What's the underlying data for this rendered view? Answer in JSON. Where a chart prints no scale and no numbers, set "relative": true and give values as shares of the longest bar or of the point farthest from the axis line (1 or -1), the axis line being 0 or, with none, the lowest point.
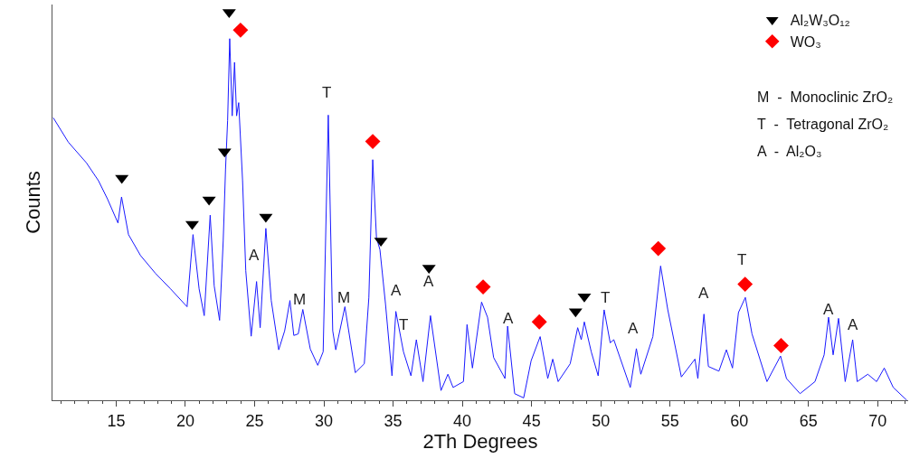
{
  "chart_data": {
    "type": "line",
    "relative": true,
    "xlabel": "2Th Degrees",
    "ylabel": "Counts",
    "xlim": [
      10.4,
      72.2
    ],
    "xticks": [
      {
        "value": 11,
        "label": null
      },
      {
        "value": 12,
        "label": null
      },
      {
        "value": 13,
        "label": null
      },
      {
        "value": 14,
        "label": null
      },
      15,
      {
        "value": 16,
        "label": null
      },
      {
        "value": 17,
        "label": null
      },
      {
        "value": 18,
        "label": null
      },
      {
        "value": 19,
        "label": null
      },
      20,
      {
        "value": 21,
        "label": null
      },
      {
        "value": 22,
        "label": null
      },
      {
        "value": 23,
        "label": null
      },
      {
        "value": 24,
        "label": null
      },
      25,
      {
        "value": 26,
        "label": null
      },
      {
        "value": 27,
        "label": null
      },
      {
        "value": 28,
        "label": null
      },
      {
        "value": 29,
        "label": null
      },
      30,
      {
        "value": 31,
        "label": null
      },
      {
        "value": 32,
        "label": null
      },
      {
        "value": 33,
        "label": null
      },
      {
        "value": 34,
        "label": null
      },
      35,
      {
        "value": 36,
        "label": null
      },
      {
        "value": 37,
        "label": null
      },
      {
        "value": 38,
        "label": null
      },
      {
        "value": 39,
        "label": null
      },
      40,
      {
        "value": 41,
        "label": null
      },
      {
        "value": 42,
        "label": null
      },
      {
        "value": 43,
        "label": null
      },
      {
        "value": 44,
        "label": null
      },
      45,
      {
        "value": 46,
        "label": null
      },
      {
        "value": 47,
        "label": null
      },
      {
        "value": 48,
        "label": null
      },
      {
        "value": 49,
        "label": null
      },
      50,
      {
        "value": 51,
        "label": null
      },
      {
        "value": 52,
        "label": null
      },
      {
        "value": 53,
        "label": null
      },
      {
        "value": 54,
        "label": null
      },
      55,
      {
        "value": 56,
        "label": null
      },
      {
        "value": 57,
        "label": null
      },
      {
        "value": 58,
        "label": null
      },
      {
        "value": 59,
        "label": null
      },
      60,
      {
        "value": 61,
        "label": null
      },
      {
        "value": 62,
        "label": null
      },
      {
        "value": 63,
        "label": null
      },
      {
        "value": 64,
        "label": null
      },
      65,
      {
        "value": 66,
        "label": null
      },
      {
        "value": 67,
        "label": null
      },
      {
        "value": 68,
        "label": null
      },
      {
        "value": 69,
        "label": null
      },
      70,
      {
        "value": 71,
        "label": null
      },
      {
        "value": 72,
        "label": null
      }
    ],
    "legend": "top right",
    "line_style": "solid",
    "series": [
      {
        "color": "#1a1aff",
        "x": [
          10.46,
          11.55,
          12.85,
          13.72,
          14.37,
          15.13,
          15.39,
          15.89,
          16.76,
          17.84,
          18.93,
          20.12,
          20.55,
          20.99,
          21.36,
          21.79,
          22.08,
          22.47,
          22.73,
          22.9,
          23.05,
          23.2,
          23.38,
          23.55,
          23.7,
          23.85,
          24.13,
          24.36,
          24.75,
          25.14,
          25.4,
          25.81,
          26.2,
          26.74,
          27.17,
          27.55,
          27.83,
          28.15,
          28.48,
          29.02,
          29.56,
          29.95,
          30.32,
          30.64,
          30.86,
          31.52,
          32.27,
          32.92,
          33.25,
          33.53,
          33.8,
          34.05,
          34.45,
          34.92,
          35.2,
          35.75,
          36.29,
          36.68,
          37.16,
          37.7,
          38.46,
          38.96,
          39.33,
          40.08,
          40.34,
          40.73,
          41.39,
          41.82,
          42.26,
          43.08,
          43.27,
          43.78,
          44.43,
          44.97,
          45.62,
          46.17,
          46.53,
          46.92,
          47.79,
          48.33,
          48.59,
          48.81,
          49.31,
          49.81,
          50.24,
          50.68,
          50.94,
          52.13,
          52.57,
          52.89,
          53.76,
          54.32,
          54.84,
          55.82,
          56.8,
          57.01,
          57.45,
          57.77,
          58.53,
          59.07,
          59.51,
          59.94,
          60.44,
          60.92,
          62.0,
          62.98,
          63.41,
          64.39,
          65.47,
          66.13,
          66.45,
          66.78,
          67.17,
          67.65,
          68.19,
          68.52,
          69.28,
          69.92,
          70.47,
          71.12,
          72.1
        ],
        "values": [
          0.728,
          0.665,
          0.612,
          0.566,
          0.519,
          0.457,
          0.524,
          0.427,
          0.373,
          0.327,
          0.287,
          0.241,
          0.427,
          0.287,
          0.218,
          0.477,
          0.295,
          0.206,
          0.41,
          0.596,
          0.721,
          0.932,
          0.733,
          0.871,
          0.733,
          0.767,
          0.566,
          0.334,
          0.165,
          0.306,
          0.187,
          0.443,
          0.257,
          0.13,
          0.179,
          0.257,
          0.167,
          0.171,
          0.234,
          0.132,
          0.09,
          0.125,
          0.735,
          0.179,
          0.13,
          0.241,
          0.071,
          0.094,
          0.265,
          0.62,
          0.419,
          0.388,
          0.249,
          0.063,
          0.229,
          0.125,
          0.063,
          0.156,
          0.048,
          0.218,
          0.025,
          0.067,
          0.033,
          0.048,
          0.195,
          0.083,
          0.253,
          0.214,
          0.11,
          0.056,
          0.191,
          0.017,
          0.006,
          0.102,
          0.164,
          0.056,
          0.106,
          0.048,
          0.094,
          0.187,
          0.156,
          0.202,
          0.125,
          0.063,
          0.233,
          0.148,
          0.156,
          0.033,
          0.133,
          0.067,
          0.164,
          0.346,
          0.233,
          0.06,
          0.106,
          0.056,
          0.222,
          0.087,
          0.075,
          0.13,
          0.083,
          0.226,
          0.265,
          0.171,
          0.048,
          0.114,
          0.056,
          0.017,
          0.048,
          0.117,
          0.214,
          0.117,
          0.211,
          0.048,
          0.156,
          0.048,
          0.067,
          0.048,
          0.083,
          0.033,
          0.0
        ]
      },
      {
        "type": "scatter",
        "name": "Al₂W₃O₁₂",
        "color": "#000000",
        "marker": "triangle",
        "x": [
          15.41,
          20.49,
          21.71,
          22.83,
          23.16,
          25.81,
          34.12,
          37.59,
          48.18,
          48.81
        ],
        "values": [
          0.573,
          0.454,
          0.517,
          0.641,
          1.0,
          0.473,
          0.411,
          0.341,
          0.229,
          0.267
        ]
      },
      {
        "type": "scatter",
        "name": "WO₃",
        "color": "#ff0000",
        "marker": "diamond",
        "x": [
          23.98,
          33.53,
          41.5,
          45.56,
          54.15,
          60.42,
          63.02
        ],
        "values": [
          0.954,
          0.667,
          0.292,
          0.202,
          0.391,
          0.299,
          0.141
        ]
      }
    ],
    "annotations": [
      "M  -  Monoclinic ZrO₂",
      "T  -  Tetragonal ZrO₂",
      "A  -  Al₂O₃",
      "A",
      "M",
      "T",
      "M",
      "A",
      "T",
      "A",
      "A",
      "T",
      "A",
      "A",
      "T",
      "A",
      "A"
    ]
  }
}
